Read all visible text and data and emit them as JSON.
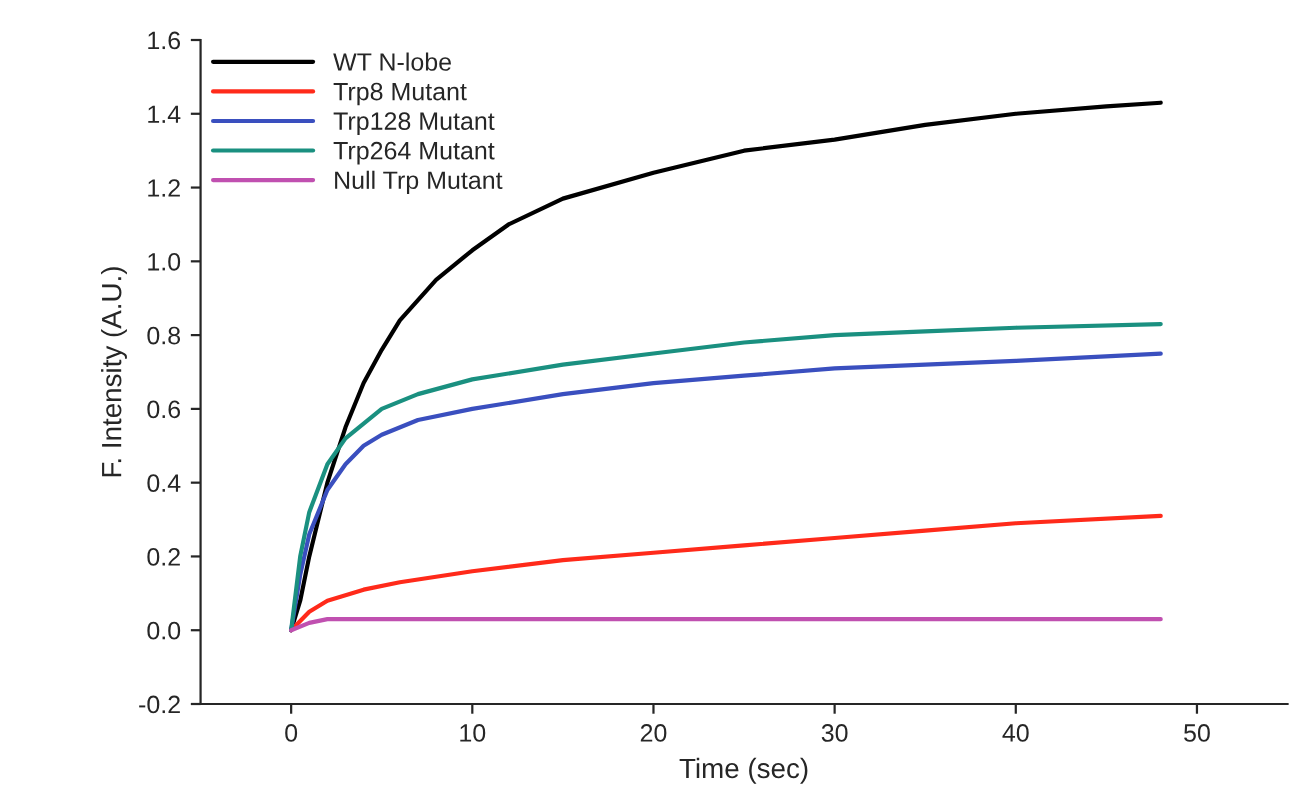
{
  "chart_data": {
    "type": "line",
    "xlabel": "Time (sec)",
    "ylabel": "F. Intensity (A.U.)",
    "xlim": [
      -5,
      55
    ],
    "xticks": [
      0,
      10,
      20,
      30,
      40,
      50
    ],
    "ylim": [
      -0.2,
      1.6
    ],
    "yticks": [
      {
        "value": -0.2,
        "label": "-0.2"
      },
      {
        "value": 0,
        "label": "0.0"
      },
      {
        "value": 0.2,
        "label": "0.2"
      },
      {
        "value": 0.4,
        "label": "0.4"
      },
      {
        "value": 0.6,
        "label": "0.6"
      },
      {
        "value": 0.8,
        "label": "0.8"
      },
      {
        "value": 1.0,
        "label": "1.0"
      },
      {
        "value": 1.2,
        "label": "1.2"
      },
      {
        "value": 1.4,
        "label": "1.4"
      },
      {
        "value": 1.6,
        "label": "1.6"
      }
    ],
    "grid": false,
    "legend": "top left",
    "marker": "none",
    "line_style": "solid",
    "series": [
      {
        "name": "WT N-lobe",
        "color": "#000000",
        "x": [
          0,
          0.5,
          1,
          2,
          3,
          4,
          5,
          6,
          8,
          10,
          12,
          15,
          20,
          25,
          30,
          35,
          40,
          45,
          48
        ],
        "values": [
          0,
          0.08,
          0.2,
          0.4,
          0.55,
          0.67,
          0.76,
          0.84,
          0.95,
          1.03,
          1.1,
          1.17,
          1.24,
          1.3,
          1.33,
          1.37,
          1.4,
          1.42,
          1.43
        ]
      },
      {
        "name": "Trp8 Mutant",
        "color": "#ff2a1a",
        "x": [
          0,
          1,
          2,
          4,
          6,
          10,
          15,
          20,
          25,
          30,
          35,
          40,
          48
        ],
        "values": [
          0,
          0.05,
          0.08,
          0.11,
          0.13,
          0.16,
          0.19,
          0.21,
          0.23,
          0.25,
          0.27,
          0.29,
          0.31
        ]
      },
      {
        "name": "Trp128 Mutant",
        "color": "#3a4fbf",
        "x": [
          0,
          0.5,
          1,
          2,
          3,
          4,
          5,
          7,
          10,
          15,
          20,
          25,
          30,
          35,
          40,
          48
        ],
        "values": [
          0,
          0.15,
          0.26,
          0.38,
          0.45,
          0.5,
          0.53,
          0.57,
          0.6,
          0.64,
          0.67,
          0.69,
          0.71,
          0.72,
          0.73,
          0.75
        ]
      },
      {
        "name": "Trp264 Mutant",
        "color": "#1a9080",
        "x": [
          0,
          0.5,
          1,
          2,
          3,
          4,
          5,
          7,
          10,
          15,
          20,
          25,
          30,
          35,
          40,
          48
        ],
        "values": [
          0,
          0.2,
          0.32,
          0.45,
          0.52,
          0.56,
          0.6,
          0.64,
          0.68,
          0.72,
          0.75,
          0.78,
          0.8,
          0.81,
          0.82,
          0.83
        ]
      },
      {
        "name": "Null Trp Mutant",
        "color": "#c050b0",
        "x": [
          0,
          1,
          2,
          5,
          48
        ],
        "values": [
          0,
          0.02,
          0.03,
          0.03,
          0.03
        ]
      }
    ]
  }
}
